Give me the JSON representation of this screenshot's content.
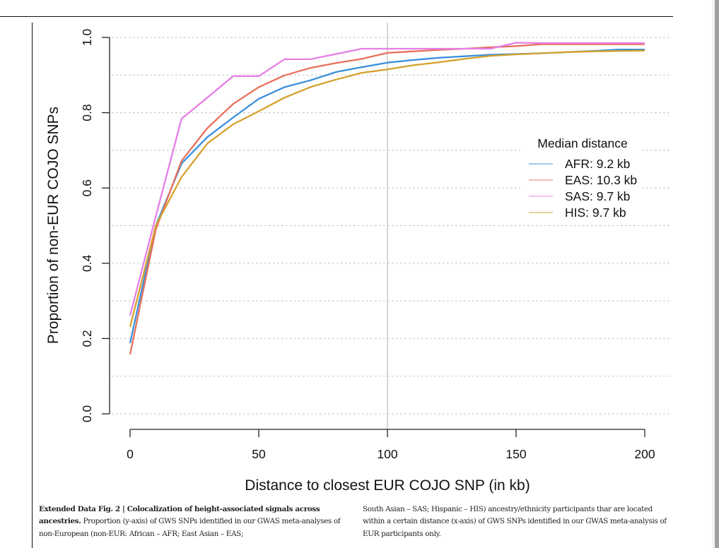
{
  "figure": {
    "caption_label": "Extended Data Fig. 2 | Colocalization of height-associated signals across ancestries.",
    "caption_left_rest": " Proportion (y-axis) of GWS SNPs identified in our GWAS meta-analyses of non-European (non-EUR: African – AFR; East Asian – EAS;",
    "caption_right": "South Asian – SAS; Hispanic – HIS) ancestry/ethnicity participants thar are located within a certain distance (x-axis) of GWS SNPs identified in our GWAS meta-analysis of EUR participants only."
  },
  "chart_data": {
    "type": "line",
    "title": "",
    "xlabel": "Distance to closest EUR COJO SNP (in kb)",
    "ylabel": "Proportion of non-EUR COJO SNPs",
    "xlim": [
      0,
      200
    ],
    "ylim": [
      0,
      1
    ],
    "xticks": [
      0,
      50,
      100,
      150,
      200
    ],
    "yticks": [
      0.0,
      0.2,
      0.4,
      0.6,
      0.8,
      1.0
    ],
    "ytick_labels": [
      "0.0",
      "0.2",
      "0.4",
      "0.6",
      "0.8",
      "1.0"
    ],
    "grid": "horizontal dotted at every 0.1",
    "reference_line_x": 100,
    "x": [
      0,
      10,
      20,
      30,
      40,
      50,
      60,
      70,
      80,
      90,
      100,
      110,
      120,
      130,
      140,
      150,
      160,
      170,
      180,
      190,
      200
    ],
    "series": [
      {
        "name": "AFR",
        "color": "#3b8fdc",
        "values": [
          0.188,
          0.5,
          0.665,
          0.735,
          0.787,
          0.837,
          0.868,
          0.886,
          0.908,
          0.921,
          0.933,
          0.94,
          0.946,
          0.95,
          0.954,
          0.956,
          0.958,
          0.961,
          0.964,
          0.968,
          0.968
        ]
      },
      {
        "name": "EAS",
        "color": "#e8705c",
        "values": [
          0.158,
          0.49,
          0.672,
          0.759,
          0.823,
          0.868,
          0.899,
          0.919,
          0.932,
          0.943,
          0.959,
          0.963,
          0.967,
          0.97,
          0.974,
          0.977,
          0.982,
          0.982,
          0.982,
          0.982,
          0.982
        ]
      },
      {
        "name": "SAS",
        "color": "#e67ee6",
        "values": [
          0.261,
          0.525,
          0.784,
          0.84,
          0.897,
          0.897,
          0.942,
          0.942,
          0.956,
          0.97,
          0.97,
          0.97,
          0.97,
          0.97,
          0.97,
          0.986,
          0.985,
          0.985,
          0.985,
          0.985,
          0.985
        ]
      },
      {
        "name": "HIS",
        "color": "#d4a12c",
        "values": [
          0.231,
          0.5,
          0.629,
          0.718,
          0.769,
          0.804,
          0.84,
          0.868,
          0.888,
          0.906,
          0.915,
          0.926,
          0.934,
          0.943,
          0.951,
          0.955,
          0.958,
          0.961,
          0.963,
          0.964,
          0.965
        ]
      }
    ],
    "legend": {
      "title": "Median distance",
      "placement": "right-middle",
      "entries": [
        "AFR: 9.2 kb",
        "EAS: 10.3 kb",
        "SAS: 9.7 kb",
        "HIS: 9.7 kb"
      ]
    }
  }
}
